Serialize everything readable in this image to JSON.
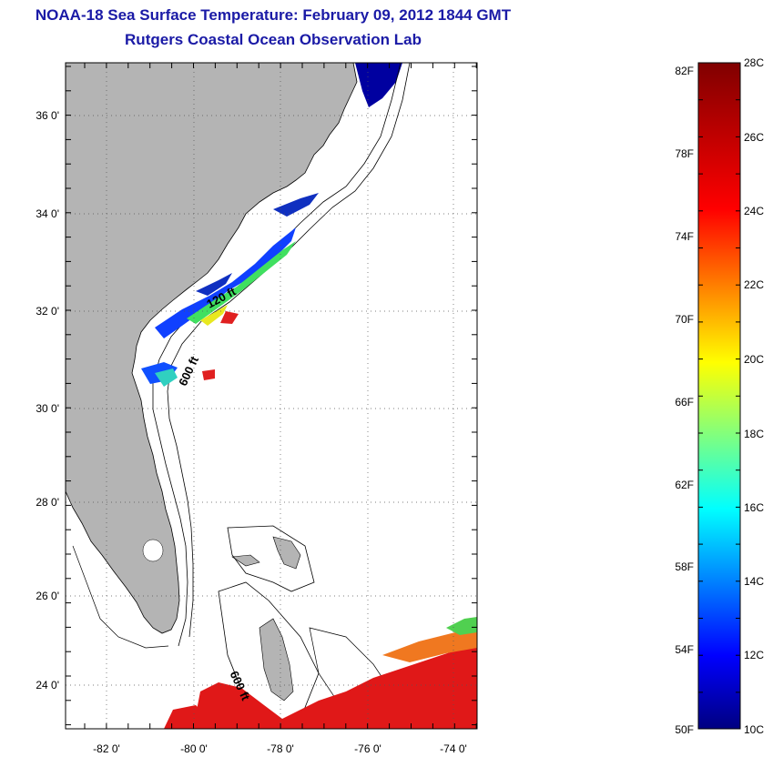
{
  "header": {
    "title": "NOAA-18 Sea Surface Temperature:  February 09, 2012 1844 GMT",
    "subtitle": "Rutgers Coastal Ocean Observation Lab"
  },
  "map": {
    "lat_labels": [
      "36 0'",
      "34 0'",
      "32 0'",
      "30 0'",
      "28 0'",
      "26 0'",
      "24 0'"
    ],
    "lon_labels": [
      "-82 0'",
      "-80 0'",
      "-78 0'",
      "-76 0'",
      "-74 0'"
    ],
    "contour_labels": [
      "120 ft",
      "600 ft",
      "600 ft"
    ],
    "colors": {
      "land": "#b4b4b4",
      "frame": "#000000",
      "grid": "#555555"
    }
  },
  "colorbar": {
    "f_labels": [
      "82F",
      "78F",
      "74F",
      "70F",
      "66F",
      "62F",
      "58F",
      "54F",
      "50F"
    ],
    "c_labels": [
      "28C",
      "26C",
      "24C",
      "22C",
      "20C",
      "18C",
      "16C",
      "14C",
      "12C",
      "10C"
    ],
    "range_c": [
      10,
      28
    ],
    "range_f": [
      50,
      82.4
    ]
  }
}
